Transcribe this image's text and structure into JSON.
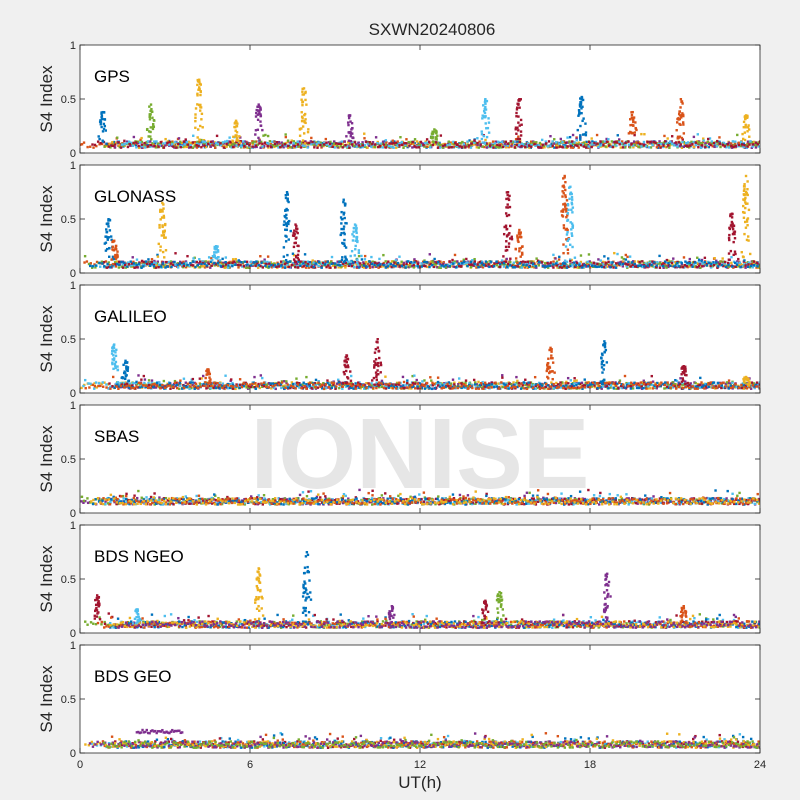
{
  "figure": {
    "title": "SXWN20240806",
    "xlabel": "UT(h)",
    "watermark": "IONISE"
  },
  "colors": [
    "#0072bd",
    "#d95319",
    "#edb120",
    "#7e2f8e",
    "#77ac30",
    "#4dbeee",
    "#a2142f"
  ],
  "chart_data": [
    {
      "type": "scatter",
      "panel_label": "GPS",
      "ylabel": "S4 Index",
      "xlim": [
        0,
        24
      ],
      "ylim": [
        0,
        1
      ],
      "xticks": [
        0,
        6,
        12,
        18,
        24
      ],
      "yticks": [
        0,
        0.5,
        1
      ],
      "background_level": 0.08,
      "spikes": [
        {
          "x": 0.8,
          "peak": 0.38,
          "color": 0
        },
        {
          "x": 2.5,
          "peak": 0.45,
          "color": 4
        },
        {
          "x": 4.2,
          "peak": 0.68,
          "color": 2
        },
        {
          "x": 5.5,
          "peak": 0.3,
          "color": 2
        },
        {
          "x": 6.3,
          "peak": 0.45,
          "color": 3
        },
        {
          "x": 7.9,
          "peak": 0.6,
          "color": 2
        },
        {
          "x": 9.5,
          "peak": 0.35,
          "color": 3
        },
        {
          "x": 12.5,
          "peak": 0.22,
          "color": 4
        },
        {
          "x": 14.3,
          "peak": 0.5,
          "color": 5
        },
        {
          "x": 15.5,
          "peak": 0.5,
          "color": 6
        },
        {
          "x": 17.7,
          "peak": 0.52,
          "color": 0
        },
        {
          "x": 19.5,
          "peak": 0.38,
          "color": 1
        },
        {
          "x": 21.2,
          "peak": 0.5,
          "color": 1
        },
        {
          "x": 23.5,
          "peak": 0.35,
          "color": 2
        }
      ]
    },
    {
      "type": "scatter",
      "panel_label": "GLONASS",
      "ylabel": "S4 Index",
      "xlim": [
        0,
        24
      ],
      "ylim": [
        0,
        1
      ],
      "xticks": [
        0,
        6,
        12,
        18,
        24
      ],
      "yticks": [
        0,
        0.5,
        1
      ],
      "background_level": 0.08,
      "spikes": [
        {
          "x": 1.0,
          "peak": 0.5,
          "color": 0
        },
        {
          "x": 1.2,
          "peak": 0.3,
          "color": 1
        },
        {
          "x": 2.9,
          "peak": 0.65,
          "color": 2
        },
        {
          "x": 4.8,
          "peak": 0.25,
          "color": 5
        },
        {
          "x": 7.3,
          "peak": 0.75,
          "color": 0
        },
        {
          "x": 7.6,
          "peak": 0.45,
          "color": 6
        },
        {
          "x": 9.3,
          "peak": 0.68,
          "color": 0
        },
        {
          "x": 9.7,
          "peak": 0.45,
          "color": 5
        },
        {
          "x": 15.1,
          "peak": 0.75,
          "color": 6
        },
        {
          "x": 15.5,
          "peak": 0.4,
          "color": 1
        },
        {
          "x": 17.1,
          "peak": 0.9,
          "color": 1
        },
        {
          "x": 17.3,
          "peak": 0.8,
          "color": 5
        },
        {
          "x": 23.0,
          "peak": 0.55,
          "color": 6
        },
        {
          "x": 23.5,
          "peak": 0.9,
          "color": 2
        }
      ]
    },
    {
      "type": "scatter",
      "panel_label": "GALILEO",
      "ylabel": "S4 Index",
      "xlim": [
        0,
        24
      ],
      "ylim": [
        0,
        1
      ],
      "xticks": [
        0,
        6,
        12,
        18,
        24
      ],
      "yticks": [
        0,
        0.5,
        1
      ],
      "background_level": 0.07,
      "spikes": [
        {
          "x": 1.2,
          "peak": 0.45,
          "color": 5
        },
        {
          "x": 1.6,
          "peak": 0.3,
          "color": 0
        },
        {
          "x": 4.5,
          "peak": 0.22,
          "color": 1
        },
        {
          "x": 9.4,
          "peak": 0.35,
          "color": 6
        },
        {
          "x": 10.5,
          "peak": 0.5,
          "color": 6
        },
        {
          "x": 16.6,
          "peak": 0.42,
          "color": 1
        },
        {
          "x": 18.5,
          "peak": 0.48,
          "color": 0
        },
        {
          "x": 21.3,
          "peak": 0.25,
          "color": 6
        },
        {
          "x": 23.5,
          "peak": 0.15,
          "color": 2
        }
      ]
    },
    {
      "type": "scatter",
      "panel_label": "SBAS",
      "ylabel": "S4 Index",
      "xlim": [
        0,
        24
      ],
      "ylim": [
        0,
        1
      ],
      "xticks": [
        0,
        6,
        12,
        18,
        24
      ],
      "yticks": [
        0,
        0.5,
        1
      ],
      "background_level": 0.11,
      "spikes": []
    },
    {
      "type": "scatter",
      "panel_label": "BDS NGEO",
      "ylabel": "S4 Index",
      "xlim": [
        0,
        24
      ],
      "ylim": [
        0,
        1
      ],
      "xticks": [
        0,
        6,
        12,
        18,
        24
      ],
      "yticks": [
        0,
        0.5,
        1
      ],
      "background_level": 0.08,
      "spikes": [
        {
          "x": 0.6,
          "peak": 0.35,
          "color": 6
        },
        {
          "x": 2.0,
          "peak": 0.22,
          "color": 5
        },
        {
          "x": 6.3,
          "peak": 0.6,
          "color": 2
        },
        {
          "x": 8.0,
          "peak": 0.75,
          "color": 0
        },
        {
          "x": 11.0,
          "peak": 0.25,
          "color": 3
        },
        {
          "x": 14.3,
          "peak": 0.3,
          "color": 6
        },
        {
          "x": 14.8,
          "peak": 0.38,
          "color": 4
        },
        {
          "x": 18.6,
          "peak": 0.55,
          "color": 3
        },
        {
          "x": 21.3,
          "peak": 0.25,
          "color": 1
        }
      ]
    },
    {
      "type": "scatter",
      "panel_label": "BDS GEO",
      "ylabel": "S4 Index",
      "xlim": [
        0,
        24
      ],
      "ylim": [
        0,
        1
      ],
      "xticks": [
        0,
        6,
        12,
        18,
        24
      ],
      "yticks": [
        0,
        0.5,
        1
      ],
      "background_level": 0.08,
      "segments": [
        {
          "x0": 2.0,
          "x1": 3.6,
          "y": 0.2,
          "color": 3
        }
      ],
      "spikes": []
    }
  ]
}
